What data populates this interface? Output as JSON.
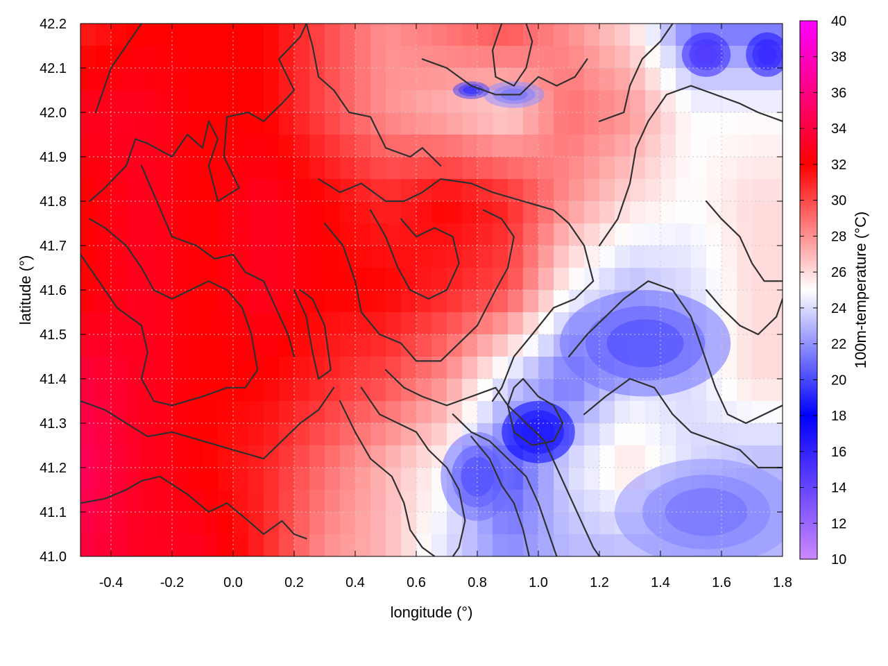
{
  "chart_data": {
    "type": "heatmap",
    "title": "",
    "xlabel": "longitude (°)",
    "ylabel": "latitude (°)",
    "colorbar_label": "100m-temperature (°C)",
    "xlim": [
      -0.5,
      1.8
    ],
    "ylim": [
      41.0,
      42.2
    ],
    "x_ticks": [
      "-0.4",
      "-0.2",
      "0.0",
      "0.2",
      "0.4",
      "0.6",
      "0.8",
      "1.0",
      "1.2",
      "1.4",
      "1.6",
      "1.8"
    ],
    "y_ticks": [
      "41.0",
      "41.1",
      "41.2",
      "41.3",
      "41.4",
      "41.5",
      "41.6",
      "41.7",
      "41.8",
      "41.9",
      "42.0",
      "42.1",
      "42.2"
    ],
    "colorbar_range": [
      10,
      40
    ],
    "colorbar_ticks": [
      "10",
      "12",
      "14",
      "16",
      "18",
      "20",
      "22",
      "24",
      "26",
      "28",
      "30",
      "32",
      "34",
      "36",
      "38",
      "40"
    ],
    "colormap": [
      {
        "value": 10,
        "color": "#cc88ff"
      },
      {
        "value": 18,
        "color": "#0000ff"
      },
      {
        "value": 25,
        "color": "#ffffff"
      },
      {
        "value": 32,
        "color": "#ff0000"
      },
      {
        "value": 40,
        "color": "#ff00ff"
      }
    ],
    "grid": true,
    "grid_lon_step": 0.2,
    "grid_lat_step": 0.1,
    "temperature_field": {
      "lon": [
        -0.5,
        -0.3,
        -0.1,
        0.1,
        0.3,
        0.5,
        0.7,
        0.9,
        1.1,
        1.3,
        1.5,
        1.7
      ],
      "lat": [
        42.2,
        42.0,
        41.8,
        41.6,
        41.4,
        41.2,
        41.0
      ],
      "values_celsius": [
        [
          31,
          32,
          32,
          32,
          30,
          28,
          29,
          30,
          28,
          26,
          21,
          21
        ],
        [
          33,
          33,
          32,
          32,
          30,
          28,
          27,
          26,
          29,
          28,
          25,
          25
        ],
        [
          32,
          33,
          32,
          33,
          32,
          31,
          32,
          31,
          28,
          26,
          25,
          26
        ],
        [
          32,
          33,
          32,
          33,
          32,
          32,
          31,
          30,
          25,
          23,
          24,
          26
        ],
        [
          34,
          33,
          32,
          32,
          31,
          30,
          28,
          24,
          21,
          24,
          24,
          26
        ],
        [
          35,
          33,
          32,
          31,
          29,
          27,
          25,
          20,
          24,
          26,
          24,
          23
        ],
        [
          34,
          33,
          33,
          31,
          28,
          27,
          24,
          22,
          23,
          23,
          23,
          23
        ]
      ]
    },
    "contour_lines": [
      [
        [
          -0.45,
          42.0
        ],
        [
          -0.4,
          42.1
        ],
        [
          -0.3,
          42.2
        ]
      ],
      [
        [
          -0.47,
          41.8
        ],
        [
          -0.42,
          41.83
        ],
        [
          -0.35,
          41.88
        ],
        [
          -0.32,
          41.94
        ],
        [
          -0.28,
          41.93
        ],
        [
          -0.2,
          41.9
        ],
        [
          -0.15,
          41.95
        ],
        [
          -0.1,
          41.92
        ],
        [
          -0.08,
          41.98
        ],
        [
          -0.05,
          41.94
        ],
        [
          -0.08,
          41.88
        ],
        [
          -0.05,
          41.8
        ],
        [
          0.02,
          41.83
        ],
        [
          -0.03,
          41.9
        ],
        [
          -0.02,
          41.99
        ],
        [
          0.05,
          42.0
        ],
        [
          0.1,
          41.98
        ],
        [
          0.16,
          42.02
        ],
        [
          0.2,
          42.05
        ],
        [
          0.15,
          42.12
        ],
        [
          0.22,
          42.17
        ],
        [
          0.24,
          42.2
        ]
      ],
      [
        [
          -0.3,
          41.88
        ],
        [
          -0.25,
          41.8
        ],
        [
          -0.2,
          41.72
        ],
        [
          -0.12,
          41.7
        ],
        [
          -0.06,
          41.67
        ],
        [
          0.0,
          41.68
        ],
        [
          0.04,
          41.64
        ],
        [
          0.1,
          41.62
        ],
        [
          0.14,
          41.56
        ],
        [
          0.18,
          41.5
        ],
        [
          0.2,
          41.45
        ]
      ],
      [
        [
          -0.5,
          41.68
        ],
        [
          -0.46,
          41.64
        ],
        [
          -0.42,
          41.6
        ],
        [
          -0.38,
          41.56
        ],
        [
          -0.3,
          41.52
        ],
        [
          -0.28,
          41.46
        ],
        [
          -0.3,
          41.4
        ],
        [
          -0.26,
          41.35
        ],
        [
          -0.2,
          41.34
        ],
        [
          -0.1,
          41.36
        ],
        [
          -0.02,
          41.38
        ],
        [
          0.04,
          41.38
        ],
        [
          0.08,
          41.42
        ],
        [
          0.06,
          41.5
        ],
        [
          0.03,
          41.56
        ],
        [
          -0.02,
          41.6
        ],
        [
          -0.08,
          41.62
        ],
        [
          -0.14,
          41.6
        ],
        [
          -0.2,
          41.58
        ],
        [
          -0.26,
          41.6
        ],
        [
          -0.3,
          41.65
        ],
        [
          -0.35,
          41.7
        ],
        [
          -0.42,
          41.74
        ],
        [
          -0.47,
          41.76
        ]
      ],
      [
        [
          -0.5,
          41.35
        ],
        [
          -0.42,
          41.33
        ],
        [
          -0.35,
          41.3
        ],
        [
          -0.28,
          41.27
        ],
        [
          -0.2,
          41.28
        ],
        [
          -0.1,
          41.26
        ],
        [
          0.0,
          41.24
        ],
        [
          0.1,
          41.22
        ],
        [
          0.16,
          41.26
        ],
        [
          0.22,
          41.3
        ],
        [
          0.28,
          41.33
        ],
        [
          0.33,
          41.38
        ]
      ],
      [
        [
          -0.5,
          41.12
        ],
        [
          -0.42,
          41.13
        ],
        [
          -0.35,
          41.15
        ],
        [
          -0.3,
          41.17
        ],
        [
          -0.24,
          41.18
        ],
        [
          -0.15,
          41.14
        ],
        [
          -0.08,
          41.1
        ],
        [
          -0.02,
          41.12
        ],
        [
          0.05,
          41.08
        ],
        [
          0.1,
          41.05
        ],
        [
          0.16,
          41.08
        ],
        [
          0.2,
          41.05
        ],
        [
          0.24,
          41.04
        ]
      ],
      [
        [
          0.24,
          42.2
        ],
        [
          0.26,
          42.15
        ],
        [
          0.28,
          42.08
        ],
        [
          0.33,
          42.05
        ],
        [
          0.38,
          42.0
        ],
        [
          0.45,
          41.99
        ],
        [
          0.5,
          41.92
        ],
        [
          0.58,
          41.9
        ],
        [
          0.62,
          41.92
        ],
        [
          0.68,
          41.88
        ]
      ],
      [
        [
          0.28,
          41.85
        ],
        [
          0.35,
          41.82
        ],
        [
          0.42,
          41.84
        ],
        [
          0.5,
          41.8
        ],
        [
          0.56,
          41.8
        ],
        [
          0.62,
          41.82
        ],
        [
          0.68,
          41.85
        ],
        [
          0.78,
          41.84
        ],
        [
          0.85,
          41.82
        ],
        [
          0.95,
          41.8
        ],
        [
          1.05,
          41.78
        ],
        [
          1.1,
          41.75
        ],
        [
          1.15,
          41.7
        ],
        [
          1.18,
          41.62
        ],
        [
          1.12,
          41.58
        ],
        [
          1.05,
          41.56
        ],
        [
          0.98,
          41.5
        ],
        [
          0.92,
          41.45
        ],
        [
          0.88,
          41.38
        ],
        [
          0.85,
          41.35
        ]
      ],
      [
        [
          0.3,
          41.75
        ],
        [
          0.36,
          41.7
        ],
        [
          0.4,
          41.62
        ],
        [
          0.42,
          41.55
        ],
        [
          0.48,
          41.5
        ],
        [
          0.55,
          41.48
        ],
        [
          0.6,
          41.44
        ],
        [
          0.68,
          41.44
        ],
        [
          0.74,
          41.48
        ],
        [
          0.8,
          41.52
        ],
        [
          0.86,
          41.6
        ],
        [
          0.9,
          41.65
        ],
        [
          0.92,
          41.72
        ],
        [
          0.88,
          41.76
        ],
        [
          0.82,
          41.78
        ]
      ],
      [
        [
          0.45,
          41.78
        ],
        [
          0.5,
          41.72
        ],
        [
          0.54,
          41.65
        ],
        [
          0.58,
          41.6
        ],
        [
          0.64,
          41.58
        ],
        [
          0.7,
          41.6
        ],
        [
          0.74,
          41.66
        ],
        [
          0.72,
          41.72
        ],
        [
          0.66,
          41.74
        ],
        [
          0.6,
          41.72
        ],
        [
          0.55,
          41.76
        ]
      ],
      [
        [
          0.2,
          41.6
        ],
        [
          0.24,
          41.54
        ],
        [
          0.26,
          41.46
        ],
        [
          0.28,
          41.4
        ],
        [
          0.32,
          41.42
        ],
        [
          0.3,
          41.52
        ],
        [
          0.26,
          41.58
        ],
        [
          0.22,
          41.6
        ]
      ],
      [
        [
          0.35,
          41.35
        ],
        [
          0.4,
          41.28
        ],
        [
          0.45,
          41.22
        ],
        [
          0.52,
          41.18
        ],
        [
          0.56,
          41.12
        ],
        [
          0.58,
          41.06
        ],
        [
          0.62,
          41.02
        ],
        [
          0.66,
          41.0
        ]
      ],
      [
        [
          0.42,
          41.38
        ],
        [
          0.48,
          41.32
        ],
        [
          0.54,
          41.3
        ],
        [
          0.6,
          41.28
        ],
        [
          0.64,
          41.24
        ],
        [
          0.7,
          41.2
        ],
        [
          0.74,
          41.15
        ],
        [
          0.76,
          41.08
        ],
        [
          0.74,
          41.02
        ],
        [
          0.72,
          41.0
        ]
      ],
      [
        [
          0.5,
          41.42
        ],
        [
          0.56,
          41.38
        ],
        [
          0.62,
          41.36
        ],
        [
          0.7,
          41.34
        ],
        [
          0.78,
          41.36
        ],
        [
          0.86,
          41.38
        ],
        [
          0.9,
          41.34
        ],
        [
          0.96,
          41.3
        ],
        [
          1.02,
          41.26
        ],
        [
          1.06,
          41.2
        ],
        [
          1.1,
          41.14
        ],
        [
          1.14,
          41.08
        ],
        [
          1.18,
          41.02
        ],
        [
          1.2,
          41.0
        ]
      ],
      [
        [
          0.72,
          41.32
        ],
        [
          0.78,
          41.28
        ],
        [
          0.84,
          41.26
        ],
        [
          0.9,
          41.22
        ],
        [
          0.96,
          41.18
        ],
        [
          1.0,
          41.12
        ],
        [
          1.03,
          41.06
        ],
        [
          1.06,
          41.0
        ]
      ],
      [
        [
          0.78,
          41.27
        ],
        [
          0.84,
          41.22
        ],
        [
          0.88,
          41.16
        ],
        [
          0.92,
          41.12
        ],
        [
          0.95,
          41.06
        ],
        [
          0.97,
          41.0
        ]
      ],
      [
        [
          1.1,
          41.45
        ],
        [
          1.16,
          41.5
        ],
        [
          1.22,
          41.54
        ],
        [
          1.28,
          41.58
        ],
        [
          1.36,
          41.62
        ],
        [
          1.44,
          41.6
        ],
        [
          1.5,
          41.54
        ],
        [
          1.54,
          41.46
        ],
        [
          1.58,
          41.38
        ],
        [
          1.62,
          41.32
        ],
        [
          1.68,
          41.3
        ],
        [
          1.74,
          41.32
        ],
        [
          1.8,
          41.34
        ]
      ],
      [
        [
          1.15,
          41.32
        ],
        [
          1.22,
          41.36
        ],
        [
          1.3,
          41.4
        ],
        [
          1.38,
          41.38
        ],
        [
          1.44,
          41.32
        ],
        [
          1.5,
          41.28
        ],
        [
          1.58,
          41.26
        ],
        [
          1.66,
          41.24
        ],
        [
          1.72,
          41.2
        ],
        [
          1.8,
          41.2
        ]
      ],
      [
        [
          1.2,
          41.7
        ],
        [
          1.26,
          41.76
        ],
        [
          1.3,
          41.84
        ],
        [
          1.32,
          41.92
        ],
        [
          1.36,
          41.98
        ],
        [
          1.42,
          42.04
        ],
        [
          1.5,
          42.06
        ],
        [
          1.58,
          42.04
        ],
        [
          1.66,
          42.02
        ],
        [
          1.72,
          42.0
        ],
        [
          1.8,
          41.98
        ]
      ],
      [
        [
          1.2,
          41.98
        ],
        [
          1.28,
          42.0
        ],
        [
          1.3,
          42.06
        ],
        [
          1.34,
          42.12
        ],
        [
          1.4,
          42.16
        ],
        [
          1.44,
          42.2
        ]
      ],
      [
        [
          0.88,
          42.2
        ],
        [
          0.85,
          42.14
        ],
        [
          0.86,
          42.08
        ],
        [
          0.92,
          42.06
        ],
        [
          0.96,
          42.1
        ],
        [
          0.98,
          42.16
        ],
        [
          0.96,
          42.2
        ]
      ],
      [
        [
          0.62,
          42.12
        ],
        [
          0.7,
          42.1
        ],
        [
          0.78,
          42.06
        ],
        [
          0.86,
          42.04
        ],
        [
          0.94,
          42.04
        ],
        [
          1.0,
          42.08
        ],
        [
          1.06,
          42.06
        ],
        [
          1.12,
          42.08
        ],
        [
          1.16,
          42.12
        ]
      ],
      [
        [
          0.95,
          41.4
        ],
        [
          1.0,
          41.36
        ],
        [
          1.05,
          41.34
        ],
        [
          1.08,
          41.3
        ],
        [
          1.05,
          41.26
        ],
        [
          0.98,
          41.25
        ],
        [
          0.92,
          41.28
        ],
        [
          0.9,
          41.34
        ],
        [
          0.92,
          41.38
        ],
        [
          0.95,
          41.4
        ]
      ],
      [
        [
          1.55,
          41.6
        ],
        [
          1.6,
          41.56
        ],
        [
          1.66,
          41.52
        ],
        [
          1.72,
          41.5
        ],
        [
          1.78,
          41.54
        ],
        [
          1.8,
          41.58
        ]
      ],
      [
        [
          1.55,
          41.8
        ],
        [
          1.6,
          41.76
        ],
        [
          1.66,
          41.72
        ],
        [
          1.7,
          41.66
        ],
        [
          1.74,
          41.62
        ],
        [
          1.8,
          41.62
        ]
      ]
    ],
    "cold_regions": [
      {
        "lon": 1.0,
        "lat": 41.28,
        "r_lon": 0.12,
        "r_lat": 0.07,
        "temp": 18
      },
      {
        "lon": 0.8,
        "lat": 41.18,
        "r_lon": 0.12,
        "r_lat": 0.1,
        "temp": 21
      },
      {
        "lon": 1.35,
        "lat": 41.48,
        "r_lon": 0.28,
        "r_lat": 0.12,
        "temp": 21
      },
      {
        "lon": 1.55,
        "lat": 42.13,
        "r_lon": 0.08,
        "r_lat": 0.05,
        "temp": 16
      },
      {
        "lon": 1.75,
        "lat": 42.13,
        "r_lon": 0.07,
        "r_lat": 0.05,
        "temp": 17
      },
      {
        "lon": 0.92,
        "lat": 42.04,
        "r_lon": 0.1,
        "r_lat": 0.03,
        "temp": 22
      },
      {
        "lon": 0.78,
        "lat": 42.05,
        "r_lon": 0.06,
        "r_lat": 0.02,
        "temp": 20
      },
      {
        "lon": 1.55,
        "lat": 41.1,
        "r_lon": 0.3,
        "r_lat": 0.12,
        "temp": 22
      }
    ]
  }
}
